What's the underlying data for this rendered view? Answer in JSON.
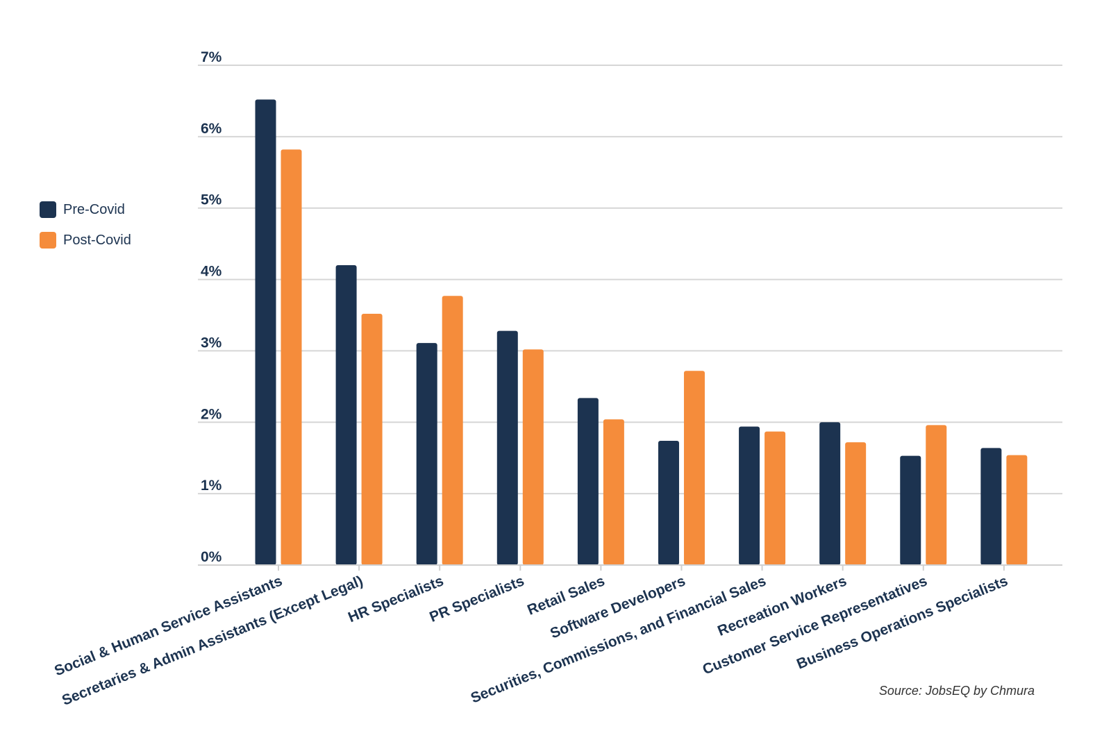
{
  "chart_data": {
    "type": "bar",
    "categories": [
      "Social & Human Service Assistants",
      "Secretaries & Admin Assistants (Except Legal)",
      "HR Specialists",
      "PR Specialists",
      "Retail Sales",
      "Software Developers",
      "Securities, Commissions, and Financial Sales",
      "Recreation Workers",
      "Customer Service Representatives",
      "Business Operations Specialists"
    ],
    "series": [
      {
        "name": "Pre-Covid",
        "color": "#1c3350",
        "values": [
          6.52,
          4.2,
          3.11,
          3.28,
          2.34,
          1.74,
          1.94,
          2.0,
          1.53,
          1.64
        ]
      },
      {
        "name": "Post-Covid",
        "color": "#f58c3b",
        "values": [
          5.82,
          3.52,
          3.77,
          3.02,
          2.04,
          2.72,
          1.87,
          1.72,
          1.96,
          1.54
        ]
      }
    ],
    "yticks": [
      "0%",
      "1%",
      "2%",
      "3%",
      "4%",
      "5%",
      "6%",
      "7%"
    ],
    "ylim": [
      0,
      7
    ],
    "grid": true,
    "legend": "left",
    "title": "",
    "xlabel": "",
    "ylabel": ""
  },
  "source": "Source: JobsEQ by Chmura"
}
